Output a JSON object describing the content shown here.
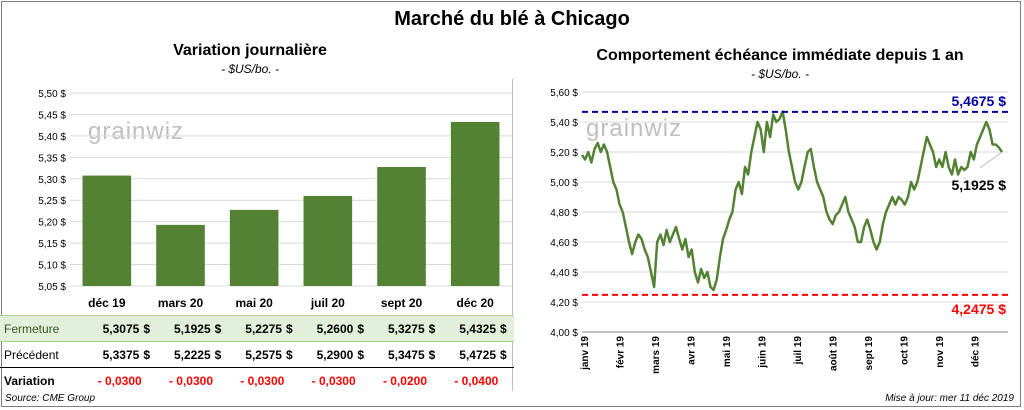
{
  "title": "Marché du blé à Chicago",
  "left_panel": {
    "title": "Variation  journalière",
    "unit": "- $US/bo. -"
  },
  "right_panel": {
    "title": "Comportement  échéance immédiate depuis 1 an",
    "unit": "- $US/bo. -"
  },
  "logo_text": "grainwiz",
  "table": {
    "rows": [
      {
        "label": "Fermeture",
        "values": [
          "5,3075",
          "5,1925",
          "5,2275",
          "5,2600",
          "5,3275",
          "5,4325"
        ],
        "suffix": "$"
      },
      {
        "label": "Précédent",
        "values": [
          "5,3375",
          "5,2225",
          "5,2575",
          "5,2900",
          "5,3475",
          "5,4725"
        ],
        "suffix": "$"
      },
      {
        "label": "Variation",
        "values": [
          "- 0,0300",
          "- 0,0300",
          "- 0,0300",
          "- 0,0300",
          "- 0,0200",
          "- 0,0400"
        ]
      }
    ]
  },
  "footer": {
    "source": "Source: CME Group",
    "updated": "Mise à jour: mer 11 déc 2019"
  },
  "colors": {
    "bar": "#548235",
    "line": "#548235",
    "high": "#0000a0",
    "low": "#ff0000"
  },
  "chart_data": [
    {
      "type": "bar",
      "categories": [
        "déc 19",
        "mars 20",
        "mai 20",
        "juil 20",
        "sept 20",
        "déc 20"
      ],
      "values": [
        5.3075,
        5.1925,
        5.2275,
        5.26,
        5.3275,
        5.4325
      ],
      "ylim": [
        5.05,
        5.5
      ],
      "yticks": [
        "5,05 $",
        "5,10 $",
        "5,15 $",
        "5,20 $",
        "5,25 $",
        "5,30 $",
        "5,35 $",
        "5,40 $",
        "5,45 $",
        "5,50 $"
      ],
      "grid": true
    },
    {
      "type": "line",
      "x_labels": [
        "janv 19",
        "févr 19",
        "mars 19",
        "avr 19",
        "mai 19",
        "juin 19",
        "juil 19",
        "août 19",
        "sept 19",
        "oct 19",
        "nov 19",
        "déc 19"
      ],
      "values": [
        5.18,
        5.15,
        5.2,
        5.13,
        5.22,
        5.26,
        5.2,
        5.25,
        5.2,
        5.1,
        5.0,
        4.95,
        4.85,
        4.8,
        4.7,
        4.6,
        4.52,
        4.6,
        4.65,
        4.62,
        4.55,
        4.5,
        4.4,
        4.3,
        4.6,
        4.65,
        4.58,
        4.68,
        4.6,
        4.65,
        4.7,
        4.62,
        4.55,
        4.62,
        4.5,
        4.55,
        4.4,
        4.33,
        4.42,
        4.36,
        4.4,
        4.3,
        4.28,
        4.35,
        4.5,
        4.62,
        4.68,
        4.75,
        4.8,
        4.95,
        5.0,
        4.92,
        5.1,
        5.05,
        5.2,
        5.3,
        5.4,
        5.35,
        5.2,
        5.4,
        5.3,
        5.45,
        5.4,
        5.42,
        5.47,
        5.35,
        5.2,
        5.1,
        5.0,
        4.95,
        5.0,
        5.1,
        5.2,
        5.22,
        5.1,
        5.0,
        4.95,
        4.9,
        4.8,
        4.75,
        4.72,
        4.78,
        4.8,
        4.85,
        4.9,
        4.8,
        4.75,
        4.7,
        4.6,
        4.6,
        4.7,
        4.75,
        4.68,
        4.6,
        4.55,
        4.6,
        4.72,
        4.8,
        4.85,
        4.9,
        4.85,
        4.9,
        4.88,
        4.85,
        4.9,
        5.0,
        4.95,
        5.0,
        5.1,
        5.2,
        5.3,
        5.25,
        5.2,
        5.1,
        5.15,
        5.1,
        5.2,
        5.1,
        5.05,
        5.15,
        5.05,
        5.1,
        5.08,
        5.1,
        5.2,
        5.15,
        5.25,
        5.3,
        5.35,
        5.4,
        5.35,
        5.25,
        5.25,
        5.23,
        5.2
      ],
      "ylim": [
        4.0,
        5.6
      ],
      "yticks": [
        "4,00 $",
        "4,20 $",
        "4,40 $",
        "4,60 $",
        "4,80 $",
        "5,00 $",
        "5,20 $",
        "5,40 $",
        "5,60 $"
      ],
      "high": {
        "value": 5.4675,
        "label": "5,4675 $"
      },
      "low": {
        "value": 4.2475,
        "label": "4,2475 $"
      },
      "last": {
        "value": 5.1925,
        "label": "5,1925 $"
      }
    }
  ]
}
